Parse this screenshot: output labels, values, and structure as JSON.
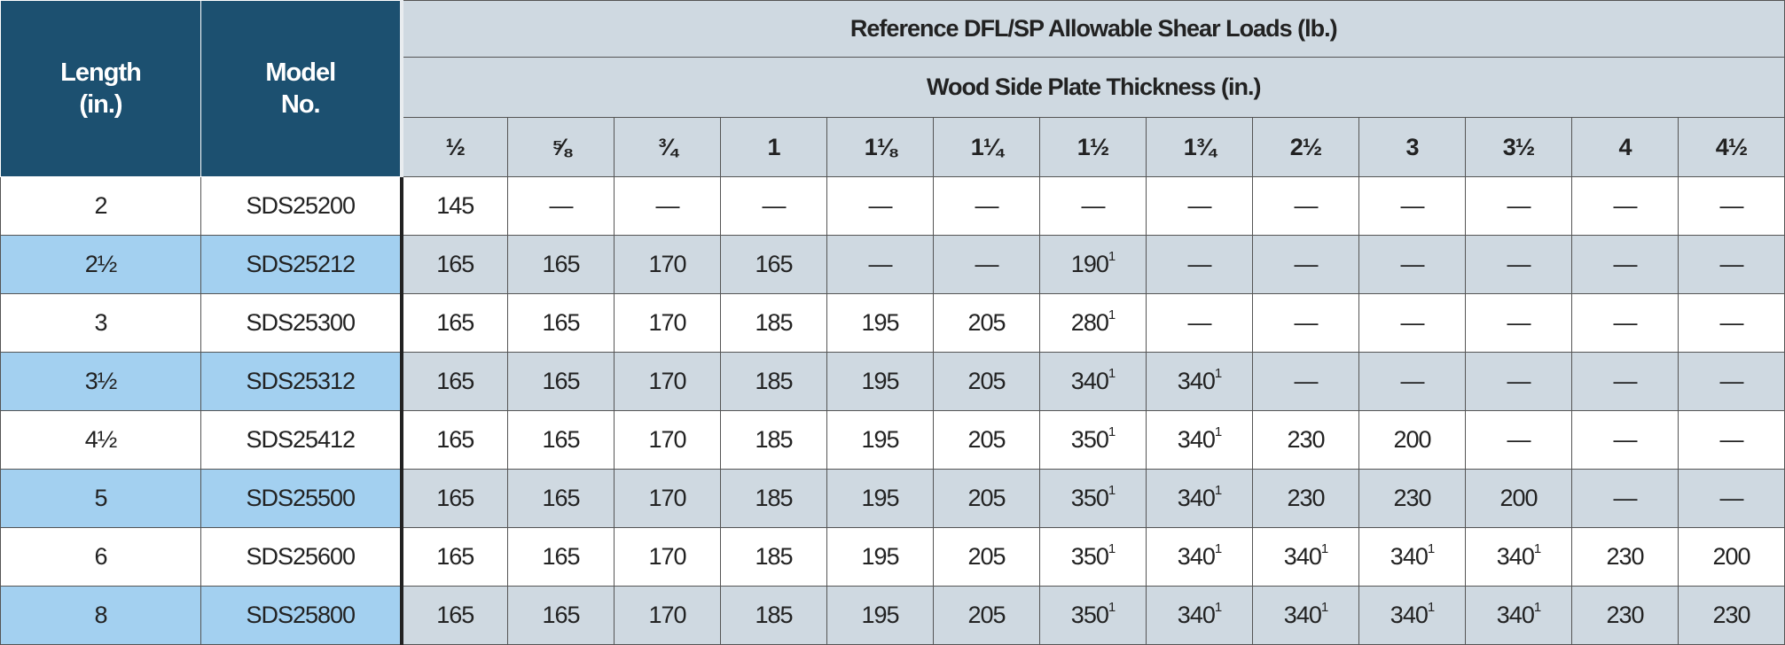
{
  "header": {
    "length": "Length (in.)",
    "length_line1": "Length",
    "length_line2": "(in.)",
    "model_line1": "Model",
    "model_line2": "No.",
    "group_title": "Reference DFL/SP Allowable Shear Loads (lb.)",
    "subgroup_title": "Wood Side Plate Thickness (in.)",
    "thickness_columns": [
      "½",
      "⅝",
      "¾",
      "1",
      "1⅛",
      "1¼",
      "1½",
      "1¾",
      "2½",
      "3",
      "3½",
      "4",
      "4½"
    ]
  },
  "colors": {
    "header_dark": "#1c5070",
    "header_gray": "#cfd9e1",
    "row_highlight": "#a3d0f0"
  },
  "rows": [
    {
      "length": "2",
      "model": "SDS25200",
      "loads": [
        [
          "145",
          ""
        ],
        [
          "—",
          ""
        ],
        [
          "—",
          ""
        ],
        [
          "—",
          ""
        ],
        [
          "—",
          ""
        ],
        [
          "—",
          ""
        ],
        [
          "—",
          ""
        ],
        [
          "—",
          ""
        ],
        [
          "—",
          ""
        ],
        [
          "—",
          ""
        ],
        [
          "—",
          ""
        ],
        [
          "—",
          ""
        ],
        [
          "—",
          ""
        ]
      ]
    },
    {
      "length": "2½",
      "model": "SDS25212",
      "loads": [
        [
          "165",
          ""
        ],
        [
          "165",
          ""
        ],
        [
          "170",
          ""
        ],
        [
          "165",
          ""
        ],
        [
          "—",
          ""
        ],
        [
          "—",
          ""
        ],
        [
          "190",
          "1"
        ],
        [
          "—",
          ""
        ],
        [
          "—",
          ""
        ],
        [
          "—",
          ""
        ],
        [
          "—",
          ""
        ],
        [
          "—",
          ""
        ],
        [
          "—",
          ""
        ]
      ]
    },
    {
      "length": "3",
      "model": "SDS25300",
      "loads": [
        [
          "165",
          ""
        ],
        [
          "165",
          ""
        ],
        [
          "170",
          ""
        ],
        [
          "185",
          ""
        ],
        [
          "195",
          ""
        ],
        [
          "205",
          ""
        ],
        [
          "280",
          "1"
        ],
        [
          "—",
          ""
        ],
        [
          "—",
          ""
        ],
        [
          "—",
          ""
        ],
        [
          "—",
          ""
        ],
        [
          "—",
          ""
        ],
        [
          "—",
          ""
        ]
      ]
    },
    {
      "length": "3½",
      "model": "SDS25312",
      "loads": [
        [
          "165",
          ""
        ],
        [
          "165",
          ""
        ],
        [
          "170",
          ""
        ],
        [
          "185",
          ""
        ],
        [
          "195",
          ""
        ],
        [
          "205",
          ""
        ],
        [
          "340",
          "1"
        ],
        [
          "340",
          "1"
        ],
        [
          "—",
          ""
        ],
        [
          "—",
          ""
        ],
        [
          "—",
          ""
        ],
        [
          "—",
          ""
        ],
        [
          "—",
          ""
        ]
      ]
    },
    {
      "length": "4½",
      "model": "SDS25412",
      "loads": [
        [
          "165",
          ""
        ],
        [
          "165",
          ""
        ],
        [
          "170",
          ""
        ],
        [
          "185",
          ""
        ],
        [
          "195",
          ""
        ],
        [
          "205",
          ""
        ],
        [
          "350",
          "1"
        ],
        [
          "340",
          "1"
        ],
        [
          "230",
          ""
        ],
        [
          "200",
          ""
        ],
        [
          "—",
          ""
        ],
        [
          "—",
          ""
        ],
        [
          "—",
          ""
        ]
      ]
    },
    {
      "length": "5",
      "model": "SDS25500",
      "loads": [
        [
          "165",
          ""
        ],
        [
          "165",
          ""
        ],
        [
          "170",
          ""
        ],
        [
          "185",
          ""
        ],
        [
          "195",
          ""
        ],
        [
          "205",
          ""
        ],
        [
          "350",
          "1"
        ],
        [
          "340",
          "1"
        ],
        [
          "230",
          ""
        ],
        [
          "230",
          ""
        ],
        [
          "200",
          ""
        ],
        [
          "—",
          ""
        ],
        [
          "—",
          ""
        ]
      ]
    },
    {
      "length": "6",
      "model": "SDS25600",
      "loads": [
        [
          "165",
          ""
        ],
        [
          "165",
          ""
        ],
        [
          "170",
          ""
        ],
        [
          "185",
          ""
        ],
        [
          "195",
          ""
        ],
        [
          "205",
          ""
        ],
        [
          "350",
          "1"
        ],
        [
          "340",
          "1"
        ],
        [
          "340",
          "1"
        ],
        [
          "340",
          "1"
        ],
        [
          "340",
          "1"
        ],
        [
          "230",
          ""
        ],
        [
          "200",
          ""
        ]
      ]
    },
    {
      "length": "8",
      "model": "SDS25800",
      "loads": [
        [
          "165",
          ""
        ],
        [
          "165",
          ""
        ],
        [
          "170",
          ""
        ],
        [
          "185",
          ""
        ],
        [
          "195",
          ""
        ],
        [
          "205",
          ""
        ],
        [
          "350",
          "1"
        ],
        [
          "340",
          "1"
        ],
        [
          "340",
          "1"
        ],
        [
          "340",
          "1"
        ],
        [
          "340",
          "1"
        ],
        [
          "230",
          ""
        ],
        [
          "230",
          ""
        ]
      ]
    }
  ]
}
